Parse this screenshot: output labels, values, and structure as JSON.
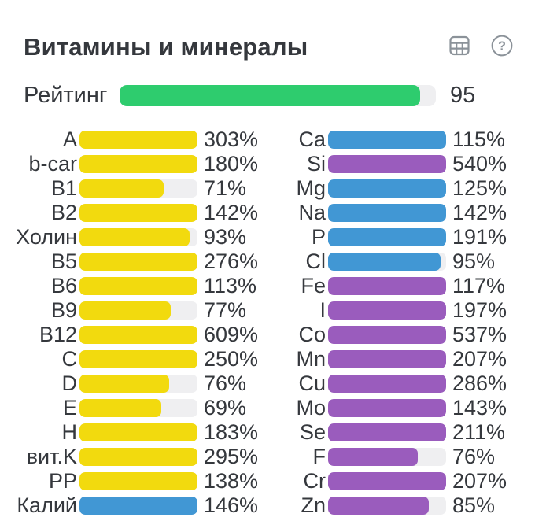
{
  "page": {
    "background": "#ffffff",
    "text_color": "#35383d"
  },
  "header": {
    "title": "Витамины и минералы",
    "table_icon": "table-grid-icon",
    "help_icon": "question-circle-icon"
  },
  "rating": {
    "label": "Рейтинг",
    "value": "95",
    "percent": 95,
    "color_key": "green"
  },
  "colors": {
    "green": "#2ecc6e",
    "yellow": "#f2da0e",
    "blue": "#4197d4",
    "purple": "#9a5cbd",
    "track": "#efeff1",
    "icon": "#8b9299"
  },
  "chart_data": {
    "type": "bar",
    "orientation": "horizontal",
    "unit": "%",
    "bar_scale_max": 100,
    "columns": [
      {
        "name": "vitamins",
        "items": [
          {
            "label": "A",
            "value": 303,
            "color": "yellow"
          },
          {
            "label": "b-car",
            "value": 180,
            "color": "yellow"
          },
          {
            "label": "B1",
            "value": 71,
            "color": "yellow"
          },
          {
            "label": "B2",
            "value": 142,
            "color": "yellow"
          },
          {
            "label": "Холин",
            "value": 93,
            "color": "yellow"
          },
          {
            "label": "B5",
            "value": 276,
            "color": "yellow"
          },
          {
            "label": "B6",
            "value": 113,
            "color": "yellow"
          },
          {
            "label": "B9",
            "value": 77,
            "color": "yellow"
          },
          {
            "label": "B12",
            "value": 609,
            "color": "yellow"
          },
          {
            "label": "C",
            "value": 250,
            "color": "yellow"
          },
          {
            "label": "D",
            "value": 76,
            "color": "yellow"
          },
          {
            "label": "E",
            "value": 69,
            "color": "yellow"
          },
          {
            "label": "H",
            "value": 183,
            "color": "yellow"
          },
          {
            "label": "вит.K",
            "value": 295,
            "color": "yellow"
          },
          {
            "label": "PP",
            "value": 138,
            "color": "yellow"
          },
          {
            "label": "Калий",
            "value": 146,
            "color": "blue"
          }
        ]
      },
      {
        "name": "minerals",
        "items": [
          {
            "label": "Ca",
            "value": 115,
            "color": "blue"
          },
          {
            "label": "Si",
            "value": 540,
            "color": "purple"
          },
          {
            "label": "Mg",
            "value": 125,
            "color": "blue"
          },
          {
            "label": "Na",
            "value": 142,
            "color": "blue"
          },
          {
            "label": "P",
            "value": 191,
            "color": "blue"
          },
          {
            "label": "Cl",
            "value": 95,
            "color": "blue"
          },
          {
            "label": "Fe",
            "value": 117,
            "color": "purple"
          },
          {
            "label": "I",
            "value": 197,
            "color": "purple"
          },
          {
            "label": "Co",
            "value": 537,
            "color": "purple"
          },
          {
            "label": "Mn",
            "value": 207,
            "color": "purple"
          },
          {
            "label": "Cu",
            "value": 286,
            "color": "purple"
          },
          {
            "label": "Mo",
            "value": 143,
            "color": "purple"
          },
          {
            "label": "Se",
            "value": 211,
            "color": "purple"
          },
          {
            "label": "F",
            "value": 76,
            "color": "purple"
          },
          {
            "label": "Cr",
            "value": 207,
            "color": "purple"
          },
          {
            "label": "Zn",
            "value": 85,
            "color": "purple"
          }
        ]
      }
    ]
  }
}
